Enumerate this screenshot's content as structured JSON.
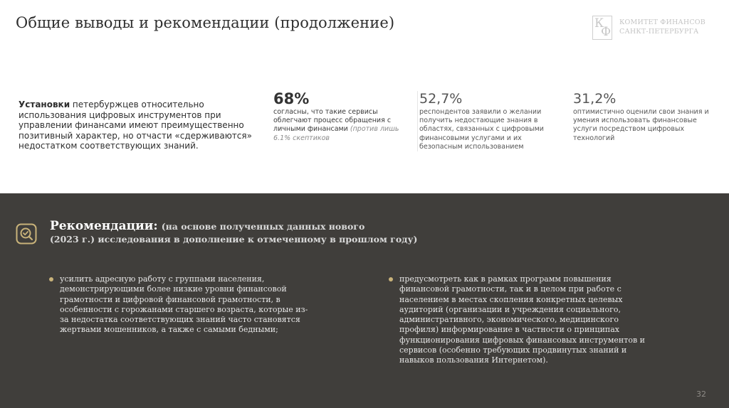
{
  "header": {
    "title": "Общие выводы и рекомендации (продолжение)",
    "logo_line1": "КОМИТЕТ ФИНАНСОВ",
    "logo_line2": "САНКТ-ПЕТЕРБУРГА",
    "logo_mark_k": "К",
    "logo_mark_f": "Ф"
  },
  "intro": {
    "bold": "Установки",
    "text": " петербуржцев относительно использования цифровых инструментов при управлении финансами имеют преимущественно позитивный характер, но отчасти «сдерживаются» недостатком соответствующих знаний."
  },
  "stats": [
    {
      "value": "68%",
      "text": "согласны, что такие сервисы облегчают процесс обращения с личными финансами",
      "note": "(против лишь 6.1% скептиков"
    },
    {
      "value": "52,7%",
      "text": "респондентов заявили о желании получить недостающие знания в областях, связанных с цифровыми финансовыми услугами и их безопасным использованием"
    },
    {
      "value": "31,2%",
      "text": "оптимистично оценили свои знания и умения использовать финансовые услуги посредством цифровых технологий"
    }
  ],
  "recommendations": {
    "title": "Рекомендации:",
    "subtitle_1": "(на основе полученных данных нового",
    "subtitle_2": "(2023 г.) исследования в дополнение к отмеченному в прошлом году)",
    "items": [
      "усилить адресную работу с группами населения, демонстрирующими более низкие уровни финансовой грамотности и цифровой финансовой грамотности, в особенности с горожанами старшего возраста, которые из-за недостатка соответствующих знаний часто становятся жертвами мошенников, а также с самыми бедными;",
      "предусмотреть как в рамках программ повышения финансовой грамотности, так и в целом при работе с населением в местах скопления конкретных целевых аудиторий (организации и учреждения социального, административного, экономического, медицинского профиля) информирование в частности о принципах функционирования цифровых финансовых инструментов и сервисов (особенно требующих продвинутых знаний и навыков пользования Интернетом)."
    ]
  },
  "footer": {
    "page_number": "32"
  },
  "colors": {
    "panel": "#403e3b",
    "accent": "#c9b37a"
  },
  "icons": {
    "recommendation": "magnifier-check-icon"
  }
}
